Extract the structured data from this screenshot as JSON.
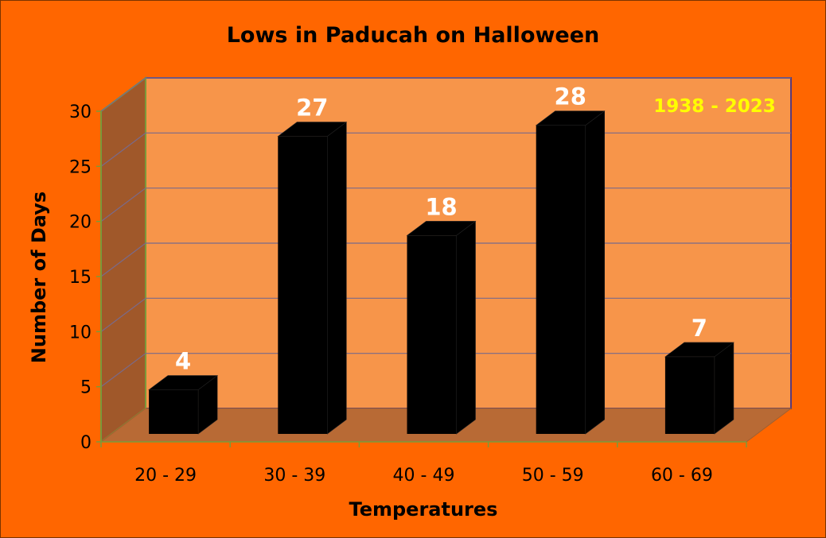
{
  "chart_data": {
    "type": "bar",
    "title": "Lows in Paducah on Halloween",
    "annotation": "1938 - 2023",
    "xlabel": "Temperatures",
    "ylabel": "Number of Days",
    "categories": [
      "20 - 29",
      "30 - 39",
      "40 - 49",
      "50 - 59",
      "60 - 69"
    ],
    "values": [
      4,
      27,
      18,
      28,
      7
    ],
    "data_labels": [
      "4",
      "27",
      "18",
      "28",
      "7"
    ],
    "ylim": [
      0,
      30
    ],
    "yticks": [
      "0",
      "5",
      "10",
      "15",
      "20",
      "25",
      "30"
    ],
    "grid": true,
    "legend": "none",
    "style": "3d-column"
  },
  "colors": {
    "page_background": "#ff6600",
    "back_wall": "#f7954a",
    "side_wall": "#a0582a",
    "floor": "#b86a35",
    "bars": "#000000",
    "data_labels": "#ffffff",
    "annotation": "#ffff00",
    "gridlines": "#7a6a8a",
    "text": "#000000"
  }
}
